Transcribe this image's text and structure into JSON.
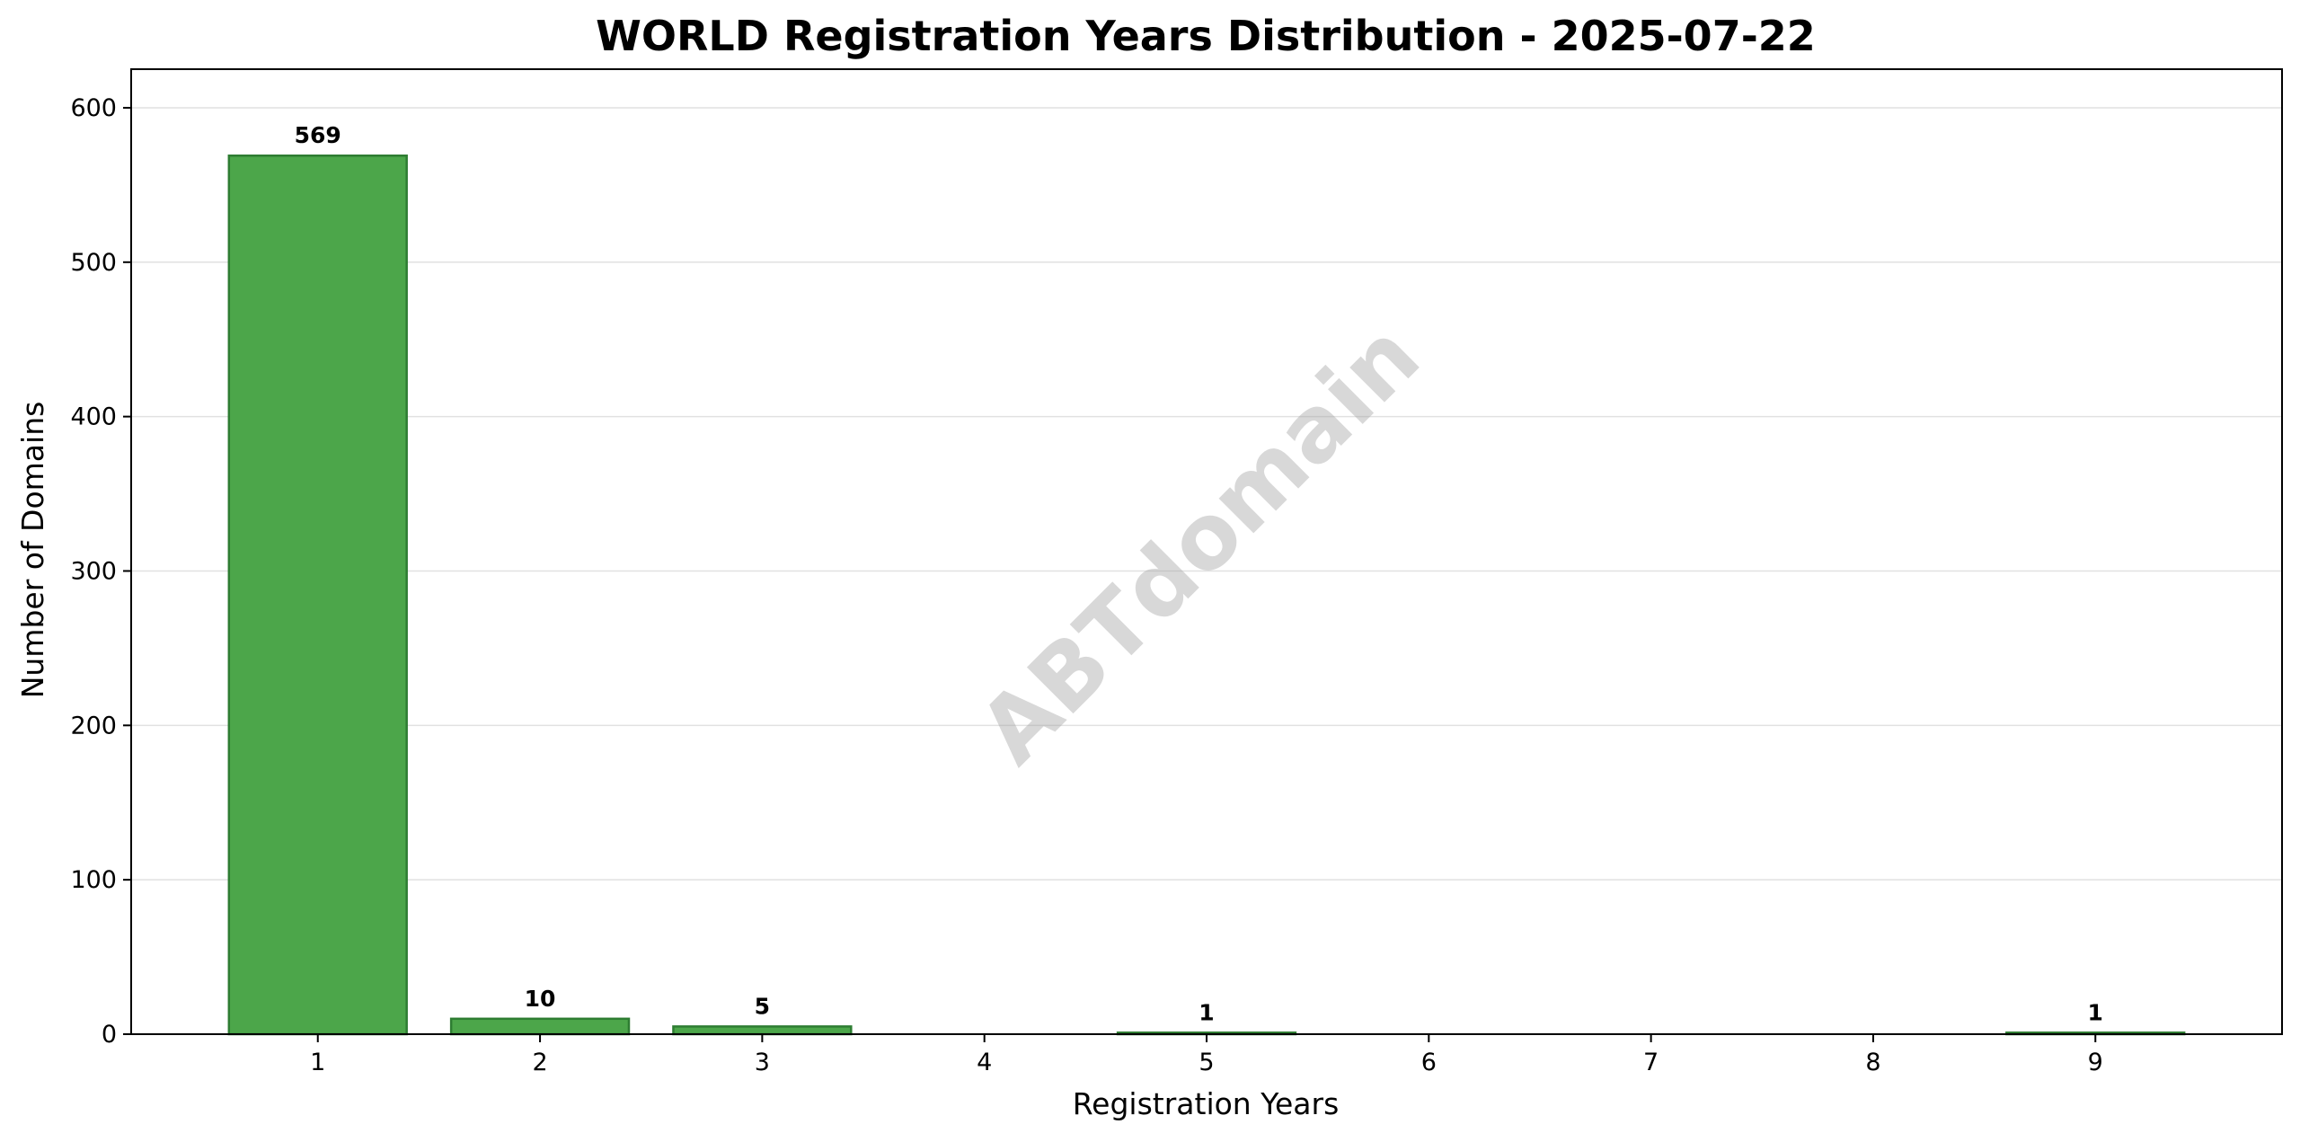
{
  "chart_data": {
    "type": "bar",
    "title": "WORLD Registration Years Distribution - 2025-07-22",
    "xlabel": "Registration Years",
    "ylabel": "Number of Domains",
    "categories": [
      "1",
      "2",
      "3",
      "4",
      "5",
      "6",
      "7",
      "8",
      "9"
    ],
    "x_ticks": [
      "1",
      "2",
      "3",
      "4",
      "5",
      "6",
      "7",
      "8",
      "9"
    ],
    "bars": [
      {
        "x": 1,
        "value": 569,
        "label": "569"
      },
      {
        "x": 2,
        "value": 10,
        "label": "10"
      },
      {
        "x": 3,
        "value": 5,
        "label": "5"
      },
      {
        "x": 5,
        "value": 1,
        "label": "1"
      },
      {
        "x": 9,
        "value": 1,
        "label": "1"
      }
    ],
    "xlim": [
      0.16,
      9.84
    ],
    "ylim": [
      0,
      625
    ],
    "y_ticks": [
      0,
      100,
      200,
      300,
      400,
      500,
      600
    ],
    "grid": "y",
    "bar_color": "#4ca64a",
    "bar_edge_color": "#2e7d32",
    "watermark": "ABTdomain"
  }
}
